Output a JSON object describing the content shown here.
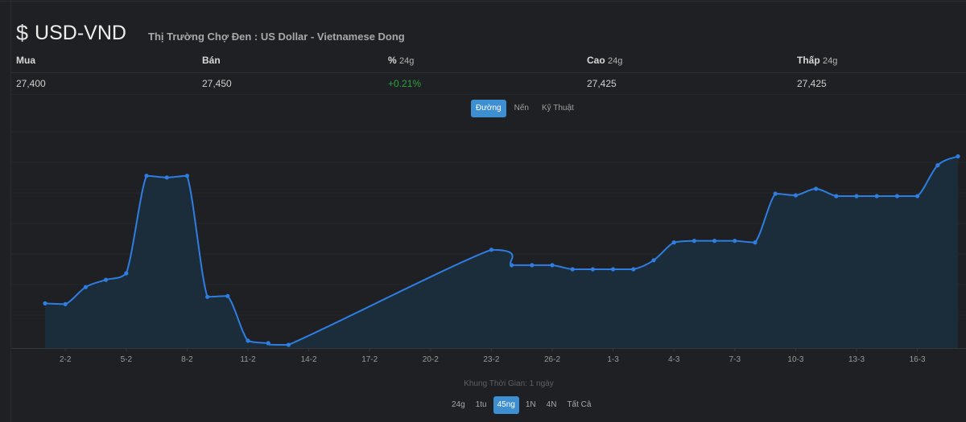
{
  "header": {
    "currency_symbol": "$",
    "pair": "USD-VND",
    "subtitle": "Thị Trường Chợ Đen : US Dollar - Vietnamese Dong"
  },
  "stats": {
    "buy_label": "Mua",
    "sell_label": "Bán",
    "change_label": "%",
    "change_unit": "24g",
    "high_label": "Cao",
    "high_unit": "24g",
    "low_label": "Thấp",
    "low_unit": "24g",
    "buy_value": "27,400",
    "sell_value": "27,450",
    "change_value": "+0.21%",
    "high_value": "27,425",
    "low_value": "27,425"
  },
  "chart_tabs": [
    "Đường",
    "Nến",
    "Kỹ Thuật"
  ],
  "chart_tabs_active": 0,
  "timeframe_label": "Khung Thời Gian: 1 ngày",
  "range_tabs": [
    "24g",
    "1tu",
    "45ng",
    "1N",
    "4N",
    "Tất Cả"
  ],
  "range_tabs_active": 2,
  "colors": {
    "line": "#2f7de1",
    "area": "#1b2d3a",
    "up": "#2ea043",
    "accent": "#3d8fd1"
  },
  "chart_data": {
    "type": "area",
    "xlabel": "",
    "ylabel": "",
    "grid": true,
    "x_ticks": [
      "2-2",
      "5-2",
      "8-2",
      "11-2",
      "14-2",
      "17-2",
      "20-2",
      "23-2",
      "26-2",
      "1-3",
      "4-3",
      "7-3",
      "10-3",
      "13-3",
      "16-3"
    ],
    "x_tick_index": [
      1,
      4,
      7,
      10,
      13,
      16,
      19,
      22,
      25,
      28,
      31,
      34,
      37,
      40,
      43
    ],
    "ylim": [
      0,
      280
    ],
    "points": [
      {
        "i": 0,
        "y": 55
      },
      {
        "i": 1,
        "y": 54
      },
      {
        "i": 2,
        "y": 75
      },
      {
        "i": 3,
        "y": 84
      },
      {
        "i": 4,
        "y": 92
      },
      {
        "i": 5,
        "y": 212
      },
      {
        "i": 6,
        "y": 210
      },
      {
        "i": 7,
        "y": 212
      },
      {
        "i": 8,
        "y": 63
      },
      {
        "i": 9,
        "y": 64
      },
      {
        "i": 10,
        "y": 9
      },
      {
        "i": 11,
        "y": 6
      },
      {
        "i": 12,
        "y": 4
      },
      {
        "i": 22,
        "y": 121
      },
      {
        "i": 23,
        "y": 102
      },
      {
        "i": 24,
        "y": 102
      },
      {
        "i": 25,
        "y": 102
      },
      {
        "i": 26,
        "y": 97
      },
      {
        "i": 27,
        "y": 97
      },
      {
        "i": 28,
        "y": 97
      },
      {
        "i": 29,
        "y": 97
      },
      {
        "i": 30,
        "y": 108
      },
      {
        "i": 31,
        "y": 130
      },
      {
        "i": 32,
        "y": 132
      },
      {
        "i": 33,
        "y": 132
      },
      {
        "i": 34,
        "y": 132
      },
      {
        "i": 35,
        "y": 130
      },
      {
        "i": 36,
        "y": 190
      },
      {
        "i": 37,
        "y": 188
      },
      {
        "i": 38,
        "y": 196
      },
      {
        "i": 39,
        "y": 187
      },
      {
        "i": 40,
        "y": 187
      },
      {
        "i": 41,
        "y": 187
      },
      {
        "i": 42,
        "y": 187
      },
      {
        "i": 43,
        "y": 187
      },
      {
        "i": 44,
        "y": 225
      },
      {
        "i": 45,
        "y": 236
      }
    ]
  }
}
